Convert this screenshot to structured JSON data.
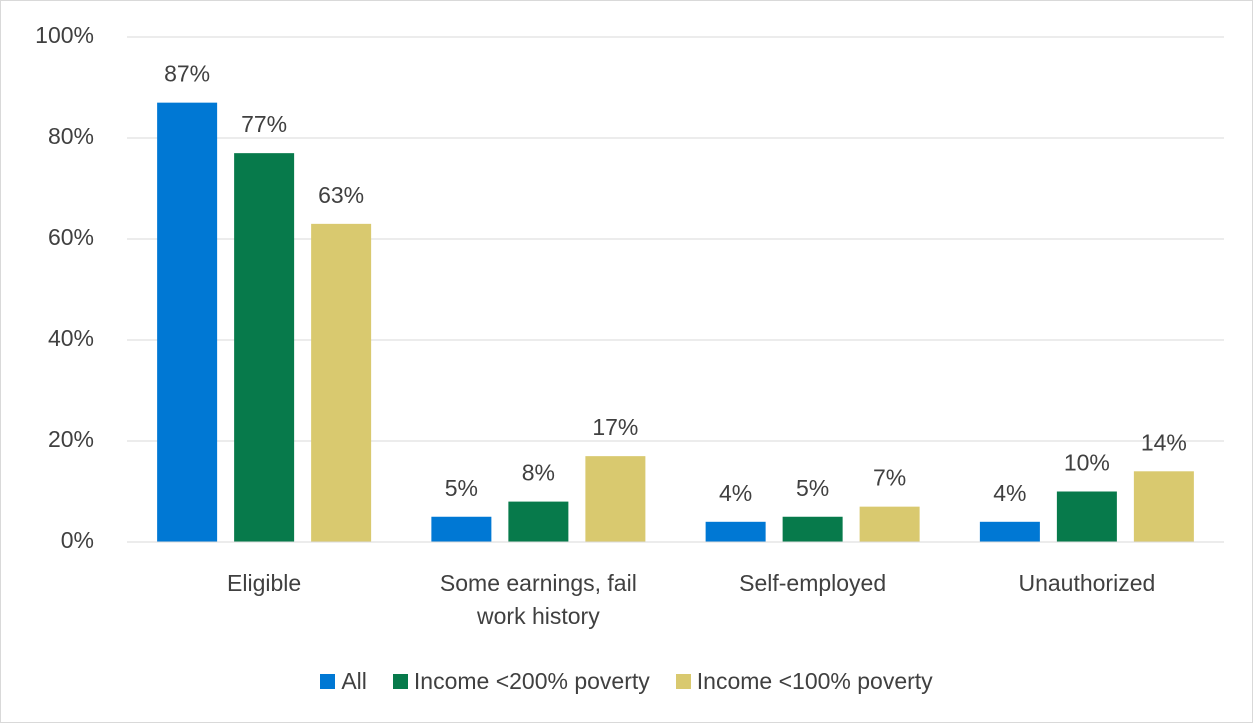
{
  "chart_data": {
    "type": "bar",
    "categories": [
      "Eligible",
      "Some earnings, fail work history",
      "Self-employed",
      "Unauthorized"
    ],
    "series": [
      {
        "name": "All",
        "color": "#0078d4",
        "values": [
          87,
          5,
          4,
          4
        ],
        "value_labels": [
          "87%",
          "5%",
          "4%",
          "4%"
        ]
      },
      {
        "name": "Income <200% poverty",
        "color": "#077a4b",
        "values": [
          77,
          8,
          5,
          10
        ],
        "value_labels": [
          "77%",
          "8%",
          "5%",
          "10%"
        ]
      },
      {
        "name": "Income <100% poverty",
        "color": "#d9c96f",
        "values": [
          63,
          17,
          7,
          14
        ],
        "value_labels": [
          "63%",
          "17%",
          "7%",
          "14%"
        ]
      }
    ],
    "ylim": [
      0,
      100
    ],
    "yticks": [
      {
        "value": 0,
        "label": "0%"
      },
      {
        "value": 20,
        "label": "20%"
      },
      {
        "value": 40,
        "label": "40%"
      },
      {
        "value": 60,
        "label": "60%"
      },
      {
        "value": 80,
        "label": "80%"
      },
      {
        "value": 100,
        "label": "100%"
      }
    ],
    "grid": true,
    "legend": "bottom"
  }
}
